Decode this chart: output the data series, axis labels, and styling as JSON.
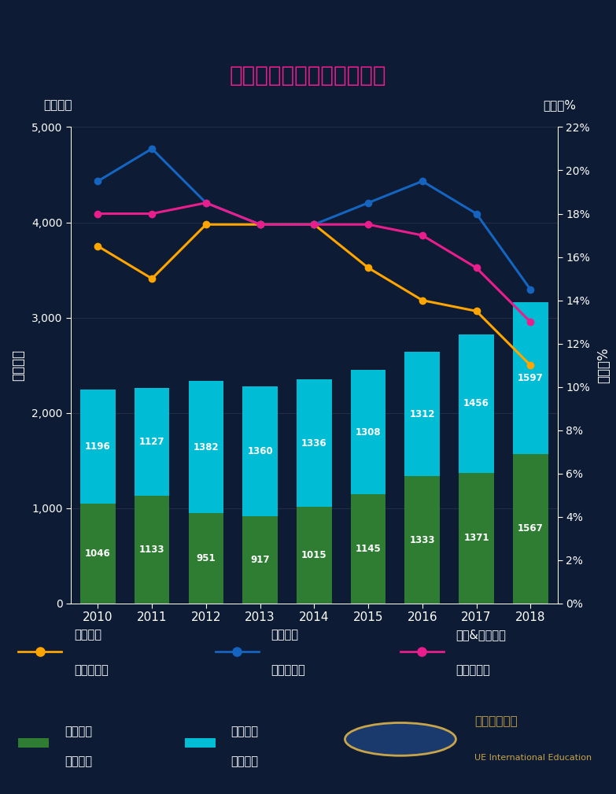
{
  "title": "牛津剑桥数学专业录取数据",
  "years": [
    2010,
    2011,
    2012,
    2013,
    2014,
    2015,
    2016,
    2017,
    2018
  ],
  "oxford_applicants": [
    1046,
    1133,
    951,
    917,
    1015,
    1145,
    1333,
    1371,
    1567
  ],
  "cambridge_applicants": [
    1196,
    1127,
    1382,
    1360,
    1336,
    1308,
    1312,
    1456,
    1597
  ],
  "oxford_rate_pct": [
    16.5,
    15.0,
    17.5,
    17.5,
    17.5,
    15.5,
    14.0,
    13.5,
    11.0
  ],
  "cambridge_rate_pct": [
    19.5,
    21.0,
    18.5,
    17.5,
    17.5,
    18.5,
    19.5,
    18.0,
    14.5
  ],
  "combined_rate_pct": [
    18.0,
    18.0,
    18.5,
    17.5,
    17.5,
    17.5,
    17.0,
    15.5,
    13.0
  ],
  "bg_color": "#0d1b35",
  "oxford_bar_color": "#2e7d32",
  "cambridge_bar_color": "#00bcd4",
  "oxford_line_color": "#FFA500",
  "cambridge_line_color": "#1565C0",
  "combined_line_color": "#e91e8c",
  "title_color": "#E91E8C",
  "text_color": "#ffffff",
  "axis_label_left": "申请人数",
  "axis_label_right": "录取率%",
  "legend_oxford_rate": "牛津数学\n实际录取率",
  "legend_cambridge_rate": "剑桥数学\n实际录取率",
  "legend_combined_rate": "牛津&剑桥数学\n实际录取率",
  "legend_oxford_applicants": "牛津数学\n申请人数",
  "legend_cambridge_applicants": "剑桥数学\n申请人数",
  "logo_line1": "优易国际教育",
  "logo_line2": "UE International Education",
  "logo_color": "#c8a44a",
  "ylim_left": [
    0,
    5000
  ],
  "ylim_right": [
    0,
    22
  ],
  "yticks_left": [
    0,
    1000,
    2000,
    3000,
    4000,
    5000
  ],
  "yticks_right": [
    0,
    2,
    4,
    6,
    8,
    10,
    12,
    14,
    16,
    18,
    20,
    22
  ]
}
